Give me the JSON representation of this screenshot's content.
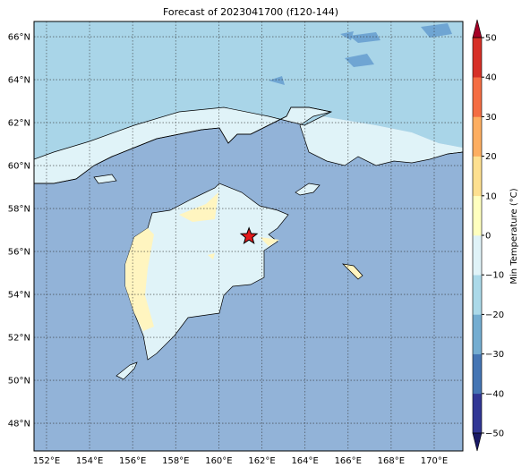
{
  "title": "Forecast of 2023041700 (f120-144)",
  "map": {
    "lonlim": [
      151.42,
      171.33
    ],
    "latlim": [
      46.71,
      66.71
    ],
    "xticks": [
      {
        "value": 152,
        "label": "152°E"
      },
      {
        "value": 154,
        "label": "154°E"
      },
      {
        "value": 156,
        "label": "156°E"
      },
      {
        "value": 158,
        "label": "158°E"
      },
      {
        "value": 160,
        "label": "160°E"
      },
      {
        "value": 162,
        "label": "162°E"
      },
      {
        "value": 164,
        "label": "164°E"
      },
      {
        "value": 166,
        "label": "166°E"
      },
      {
        "value": 168,
        "label": "168°E"
      },
      {
        "value": 170,
        "label": "170°E"
      }
    ],
    "yticks": [
      {
        "value": 48,
        "label": "48°N"
      },
      {
        "value": 50,
        "label": "50°N"
      },
      {
        "value": 52,
        "label": "52°N"
      },
      {
        "value": 54,
        "label": "54°N"
      },
      {
        "value": 56,
        "label": "56°N"
      },
      {
        "value": 58,
        "label": "58°N"
      },
      {
        "value": 60,
        "label": "60°N"
      },
      {
        "value": 62,
        "label": "62°N"
      },
      {
        "value": 64,
        "label": "64°N"
      },
      {
        "value": 66,
        "label": "66°N"
      }
    ],
    "grid": true,
    "marker": {
      "lon": 161.4,
      "lat": 56.7,
      "color": "#e31a1c"
    }
  },
  "colorbar": {
    "label": "Min Temperature (°C)",
    "lim": [
      -50,
      50
    ],
    "ticks": [
      {
        "value": -50,
        "label": "−50"
      },
      {
        "value": -40,
        "label": "−40"
      },
      {
        "value": -30,
        "label": "−30"
      },
      {
        "value": -20,
        "label": "−20"
      },
      {
        "value": -10,
        "label": "−10"
      },
      0,
      10,
      20,
      30,
      40,
      50
    ],
    "colors": [
      "#313695",
      "#4575b4",
      "#74add1",
      "#abd9e9",
      "#e0f3f8",
      "#ffffbf",
      "#fee090",
      "#fdae61",
      "#f46d43",
      "#d73027"
    ],
    "extend_colors": [
      "#1a1a66",
      "#a50026"
    ]
  }
}
